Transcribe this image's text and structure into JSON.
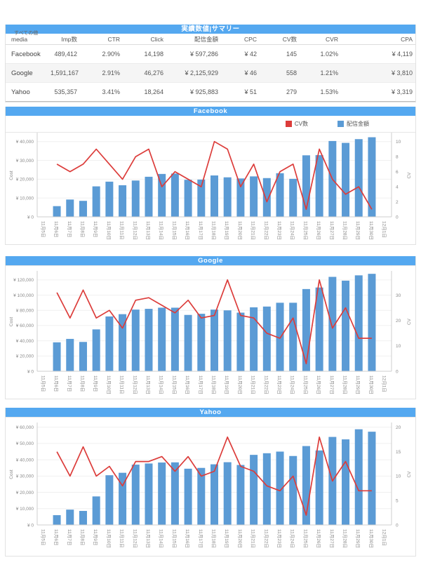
{
  "page": {
    "filter_label": "すべての値"
  },
  "colors": {
    "header_blue": "#54a8f0",
    "bar_blue": "#5b9bd5",
    "line_red": "#dc3c3a",
    "grid": "#f0f0f0",
    "axis": "#cfcfcf",
    "tick_text": "#8a8a8a"
  },
  "legend": {
    "cv_label": "CV数",
    "cost_label": "配信金額"
  },
  "summary_table": {
    "title": "実績数値|サマリー",
    "columns": [
      "media",
      "Imp数",
      "CTR",
      "Click",
      "配信金額",
      "CPC",
      "CV数",
      "CVR",
      "CPA"
    ],
    "rows": [
      [
        "Facebook",
        "489,412",
        "2.90%",
        "14,198",
        "¥ 597,286",
        "¥ 42",
        "145",
        "1.02%",
        "¥ 4,119"
      ],
      [
        "Google",
        "1,591,167",
        "2.91%",
        "46,276",
        "¥ 2,125,929",
        "¥ 46",
        "558",
        "1.21%",
        "¥ 3,810"
      ],
      [
        "Yahoo",
        "535,357",
        "3.41%",
        "18,264",
        "¥ 925,883",
        "¥ 51",
        "279",
        "1.53%",
        "¥ 3,319"
      ]
    ]
  },
  "chart_data": [
    {
      "type": "bar",
      "subtype": "combo_bar_line",
      "title": "Facebook",
      "categories": [
        "11月5日",
        "11月6日",
        "11月7日",
        "11月8日",
        "11月9日",
        "11月10日",
        "11月11日",
        "11月12日",
        "11月13日",
        "11月14日",
        "11月15日",
        "11月16日",
        "11月17日",
        "11月18日",
        "11月19日",
        "11月20日",
        "11月21日",
        "11月22日",
        "11月23日",
        "11月24日",
        "11月25日",
        "11月26日",
        "11月27日",
        "11月28日",
        "11月29日",
        "11月30日",
        "12月1日"
      ],
      "series": [
        {
          "name": "配信金額",
          "kind": "bar",
          "axis": "left",
          "values": [
            null,
            5700,
            9200,
            8500,
            16200,
            18700,
            16800,
            19300,
            21300,
            22800,
            23000,
            19700,
            19800,
            22000,
            21000,
            20400,
            21500,
            20600,
            23200,
            20200,
            32700,
            32800,
            40300,
            39300,
            41300,
            42300,
            null
          ]
        },
        {
          "name": "CV数",
          "kind": "line",
          "axis": "right",
          "values": [
            null,
            7,
            6,
            7,
            9,
            7,
            5,
            8,
            9,
            4,
            6,
            5,
            4,
            10,
            9,
            4,
            7,
            2,
            6,
            7,
            1,
            9,
            5,
            3,
            4,
            1,
            null
          ]
        }
      ],
      "left_axis": {
        "label": "Cost",
        "ticks": [
          0,
          10000,
          20000,
          30000,
          40000
        ],
        "max": 44000,
        "format": "yen"
      },
      "right_axis": {
        "label": "CV",
        "ticks": [
          0,
          2,
          4,
          6,
          8,
          10
        ],
        "max": 11
      },
      "legend_position": "top-right",
      "grid": true
    },
    {
      "type": "bar",
      "subtype": "combo_bar_line",
      "title": "Google",
      "categories": [
        "11月5日",
        "11月6日",
        "11月7日",
        "11月8日",
        "11月9日",
        "11月10日",
        "11月11日",
        "11月12日",
        "11月13日",
        "11月14日",
        "11月15日",
        "11月16日",
        "11月17日",
        "11月18日",
        "11月19日",
        "11月20日",
        "11月21日",
        "11月22日",
        "11月23日",
        "11月24日",
        "11月25日",
        "11月26日",
        "11月27日",
        "11月28日",
        "11月29日",
        "11月30日",
        "12月1日"
      ],
      "series": [
        {
          "name": "配信金額",
          "kind": "bar",
          "axis": "left",
          "values": [
            null,
            38000,
            42500,
            38500,
            55000,
            72000,
            75000,
            81000,
            82000,
            83500,
            83500,
            74000,
            75500,
            81000,
            80000,
            77000,
            84000,
            85000,
            90000,
            90000,
            108000,
            110000,
            124000,
            119000,
            126000,
            128000,
            null
          ]
        },
        {
          "name": "CV数",
          "kind": "line",
          "axis": "right",
          "values": [
            null,
            31,
            21,
            32,
            21,
            24,
            17,
            28,
            29,
            26,
            23,
            28,
            21,
            22,
            36,
            22,
            21,
            15,
            13,
            21,
            3,
            36,
            17,
            25,
            13,
            13,
            null
          ]
        }
      ],
      "left_axis": {
        "label": "Cost",
        "ticks": [
          0,
          20000,
          40000,
          60000,
          80000,
          100000,
          120000
        ],
        "max": 130000,
        "format": "yen"
      },
      "right_axis": {
        "label": "CV",
        "ticks": [
          0,
          10,
          20,
          30
        ],
        "max": 39
      },
      "legend_position": "none",
      "grid": true
    },
    {
      "type": "bar",
      "subtype": "combo_bar_line",
      "title": "Yahoo",
      "categories": [
        "11月5日",
        "11月6日",
        "11月7日",
        "11月8日",
        "11月9日",
        "11月10日",
        "11月11日",
        "11月12日",
        "11月13日",
        "11月14日",
        "11月15日",
        "11月16日",
        "11月17日",
        "11月18日",
        "11月19日",
        "11月20日",
        "11月21日",
        "11月22日",
        "11月23日",
        "11月24日",
        "11月25日",
        "11月26日",
        "11月27日",
        "11月28日",
        "11月29日",
        "11月30日",
        "12月1日"
      ],
      "series": [
        {
          "name": "配信金額",
          "kind": "bar",
          "axis": "left",
          "values": [
            null,
            6000,
            9400,
            8600,
            17500,
            30500,
            32000,
            37000,
            37700,
            38300,
            38400,
            34500,
            35000,
            37200,
            38500,
            36800,
            43000,
            44000,
            45000,
            42300,
            48400,
            45700,
            54000,
            52500,
            58700,
            57200,
            null
          ]
        },
        {
          "name": "CV数",
          "kind": "line",
          "axis": "right",
          "values": [
            null,
            15,
            10,
            16,
            10,
            12,
            8,
            13,
            13,
            14,
            11,
            14,
            10,
            11,
            18,
            12,
            11,
            8,
            7,
            10,
            2,
            18,
            9,
            13,
            7,
            7,
            null
          ]
        }
      ],
      "left_axis": {
        "label": "Cost",
        "ticks": [
          0,
          10000,
          20000,
          30000,
          40000,
          50000,
          60000
        ],
        "max": 62000,
        "format": "yen"
      },
      "right_axis": {
        "label": "CV",
        "ticks": [
          0,
          5,
          10,
          15,
          20
        ],
        "max": 20.7
      },
      "legend_position": "none",
      "grid": true
    }
  ]
}
